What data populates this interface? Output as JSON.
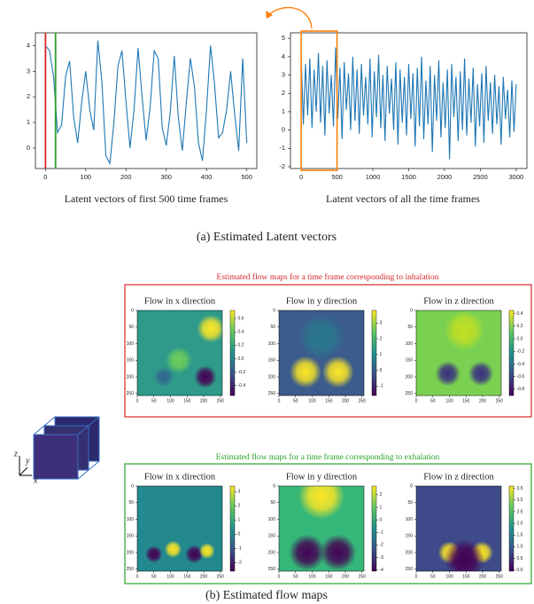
{
  "figure": {
    "line_captions": [
      "Latent vectors of first 500 time frames",
      "Latent vectors of all the time frames"
    ],
    "subcaptions": [
      "(a)  Estimated Latent vectors",
      "(b)  Estimated flow maps"
    ],
    "group_labels": [
      {
        "text": "Estimated flow maps for a time frame corresponding to inhalation",
        "color": "#d62728"
      },
      {
        "text": "Estimated flow maps for a time frame corresponding to exhalation",
        "color": "#2ca02c"
      }
    ],
    "axes_icon": [
      "z",
      "y",
      "x"
    ]
  },
  "chart_data": [
    {
      "type": "line",
      "xlim": [
        -25,
        525
      ],
      "ylim": [
        -0.8,
        4.5
      ],
      "xticks": [
        0,
        100,
        200,
        300,
        400,
        500
      ],
      "yticks": [
        0,
        1,
        2,
        3,
        4
      ],
      "x": [
        0,
        10,
        20,
        30,
        40,
        50,
        60,
        70,
        80,
        90,
        100,
        110,
        120,
        130,
        140,
        150,
        160,
        170,
        180,
        190,
        200,
        210,
        220,
        230,
        240,
        250,
        260,
        270,
        280,
        290,
        300,
        310,
        320,
        330,
        340,
        350,
        360,
        370,
        380,
        390,
        400,
        410,
        420,
        430,
        440,
        450,
        460,
        470,
        480,
        490,
        500
      ],
      "series": [
        {
          "color": "#1f77b4",
          "values": [
            4.0,
            3.8,
            2.8,
            0.6,
            0.9,
            2.8,
            3.4,
            1.2,
            0.2,
            1.8,
            3.0,
            1.5,
            0.7,
            4.2,
            2.6,
            -0.3,
            -0.6,
            1.0,
            3.2,
            3.8,
            1.8,
            0.0,
            1.5,
            3.9,
            2.0,
            0.3,
            1.6,
            3.8,
            3.5,
            0.8,
            0.1,
            1.4,
            3.6,
            1.2,
            -0.1,
            1.8,
            3.5,
            2.4,
            0.2,
            -0.5,
            1.5,
            4.0,
            2.5,
            0.4,
            0.6,
            1.5,
            3.0,
            1.3,
            -0.1,
            3.5,
            0.2
          ]
        }
      ],
      "vlines": [
        {
          "x": 0,
          "color": "#d62728"
        },
        {
          "x": 25,
          "color": "#2ca02c"
        }
      ]
    },
    {
      "type": "line",
      "xlim": [
        -150,
        3150
      ],
      "ylim": [
        -2.1,
        5.3
      ],
      "xticks": [
        0,
        500,
        1000,
        1500,
        2000,
        2500,
        3000
      ],
      "yticks": [
        -2,
        -1,
        0,
        1,
        2,
        3,
        4,
        5
      ],
      "x": [
        0,
        30,
        60,
        90,
        120,
        150,
        180,
        210,
        240,
        270,
        300,
        330,
        360,
        390,
        420,
        450,
        480,
        510,
        540,
        570,
        600,
        630,
        660,
        690,
        720,
        750,
        780,
        810,
        840,
        870,
        900,
        930,
        960,
        990,
        1020,
        1050,
        1080,
        1110,
        1140,
        1170,
        1200,
        1230,
        1260,
        1290,
        1320,
        1350,
        1380,
        1410,
        1440,
        1470,
        1500,
        1530,
        1560,
        1590,
        1620,
        1650,
        1680,
        1710,
        1740,
        1770,
        1800,
        1830,
        1860,
        1890,
        1920,
        1950,
        1980,
        2010,
        2040,
        2070,
        2100,
        2130,
        2160,
        2190,
        2220,
        2250,
        2280,
        2310,
        2340,
        2370,
        2400,
        2430,
        2460,
        2490,
        2520,
        2550,
        2580,
        2610,
        2640,
        2670,
        2700,
        2730,
        2760,
        2790,
        2820,
        2850,
        2880,
        2910,
        2940,
        2970,
        3000
      ],
      "series": [
        {
          "color": "#1f77b4",
          "values": [
            4.0,
            0.3,
            3.6,
            0.8,
            3.9,
            0.1,
            3.3,
            1.0,
            4.2,
            0.4,
            3.5,
            -0.3,
            3.8,
            0.9,
            3.0,
            0.2,
            4.5,
            0.6,
            3.4,
            -0.5,
            3.7,
            1.1,
            3.1,
            0.0,
            4.0,
            0.5,
            3.3,
            -0.2,
            3.6,
            0.8,
            2.9,
            0.3,
            3.9,
            -0.4,
            3.2,
            0.7,
            4.1,
            0.1,
            3.0,
            -0.6,
            3.5,
            0.9,
            2.8,
            0.0,
            3.7,
            -0.8,
            3.3,
            0.4,
            2.9,
            -0.3,
            3.6,
            0.6,
            3.1,
            -0.9,
            3.4,
            0.2,
            4.0,
            -0.5,
            2.7,
            0.3,
            3.5,
            -1.2,
            3.0,
            0.5,
            3.8,
            -0.4,
            2.6,
            0.1,
            3.3,
            -1.6,
            3.6,
            0.7,
            2.9,
            -0.6,
            3.2,
            0.0,
            3.9,
            -0.3,
            2.8,
            0.4,
            3.4,
            -0.9,
            2.5,
            0.2,
            3.1,
            -0.7,
            3.5,
            0.5,
            2.6,
            -0.2,
            3.0,
            0.3,
            2.4,
            -0.8,
            2.9,
            0.6,
            2.2,
            -0.4,
            2.7,
            -0.1,
            2.5
          ]
        }
      ],
      "highlight": {
        "x": [
          0,
          500
        ],
        "color": "#ff7f0e"
      }
    },
    {
      "type": "heatmap",
      "title": "Flow in x direction",
      "xlim": [
        0,
        256
      ],
      "ylim": [
        256,
        0
      ],
      "xticks": [
        0,
        50,
        100,
        150,
        200,
        250
      ],
      "yticks": [
        0,
        50,
        100,
        150,
        200,
        250
      ],
      "clim": [
        -0.55,
        0.72
      ],
      "cticks": [
        0.6,
        0.4,
        0.2,
        {
          "value": 0,
          "label": "0.0"
        },
        -0.2,
        -0.4
      ]
    },
    {
      "type": "heatmap",
      "title": "Flow in y direction",
      "xlim": [
        0,
        256
      ],
      "ylim": [
        256,
        0
      ],
      "xticks": [
        0,
        50,
        100,
        150,
        200,
        250
      ],
      "yticks": [
        0,
        50,
        100,
        150,
        200,
        250
      ],
      "clim": [
        -1.6,
        3.8
      ],
      "cticks": [
        3,
        2,
        1,
        0,
        -1
      ]
    },
    {
      "type": "heatmap",
      "title": "Flow in z direction",
      "xlim": [
        0,
        256
      ],
      "ylim": [
        256,
        0
      ],
      "xticks": [
        0,
        50,
        100,
        150,
        200,
        250
      ],
      "yticks": [
        0,
        50,
        100,
        150,
        200,
        250
      ],
      "clim": [
        -0.9,
        0.45
      ],
      "cticks": [
        0.4,
        0.2,
        {
          "value": 0,
          "label": "0.0"
        },
        -0.2,
        -0.4,
        -0.6,
        -0.8
      ]
    },
    {
      "type": "heatmap",
      "title": "Flow in x direction",
      "xlim": [
        0,
        256
      ],
      "ylim": [
        256,
        0
      ],
      "xticks": [
        0,
        50,
        100,
        150,
        200,
        250
      ],
      "yticks": [
        0,
        50,
        100,
        150,
        200,
        250
      ],
      "clim": [
        -2.6,
        3.4
      ],
      "cticks": [
        3,
        2,
        1,
        0,
        -1,
        -2
      ]
    },
    {
      "type": "heatmap",
      "title": "Flow in y direction",
      "xlim": [
        0,
        256
      ],
      "ylim": [
        256,
        0
      ],
      "xticks": [
        0,
        50,
        100,
        150,
        200,
        250
      ],
      "yticks": [
        0,
        50,
        100,
        150,
        200,
        250
      ],
      "clim": [
        -4.1,
        2.7
      ],
      "cticks": [
        2,
        1,
        0,
        -1,
        -2,
        -3,
        -4
      ]
    },
    {
      "type": "heatmap",
      "title": "Flow in z direction",
      "xlim": [
        0,
        256
      ],
      "ylim": [
        256,
        0
      ],
      "xticks": [
        0,
        50,
        100,
        150,
        200,
        250
      ],
      "yticks": [
        0,
        50,
        100,
        150,
        200,
        250
      ],
      "clim": [
        -0.05,
        3.6
      ],
      "cticks": [
        3.5,
        {
          "value": 3,
          "label": "3.0"
        },
        2.5,
        {
          "value": 2,
          "label": "2.0"
        },
        1.5,
        {
          "value": 1,
          "label": "1.0"
        },
        0.5,
        {
          "value": 0,
          "label": "0.0"
        }
      ]
    }
  ]
}
